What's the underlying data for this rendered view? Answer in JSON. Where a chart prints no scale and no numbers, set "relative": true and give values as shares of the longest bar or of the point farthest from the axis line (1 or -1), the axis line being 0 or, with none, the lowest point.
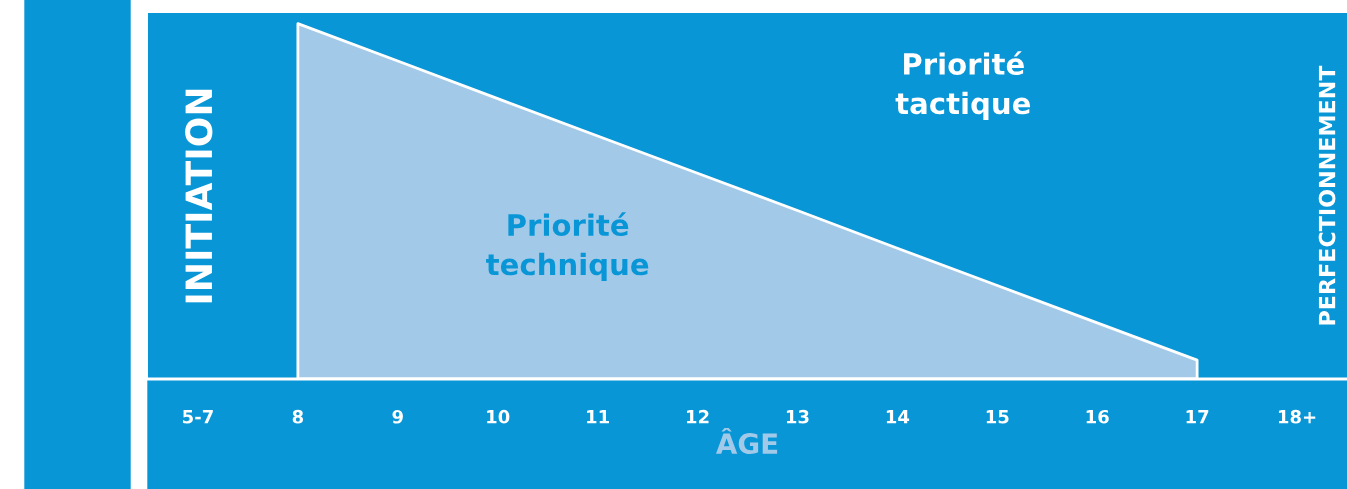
{
  "chart_data": {
    "type": "area",
    "relative": true,
    "xlabel": "ÂGE",
    "categories": [
      "5-7",
      "8",
      "9",
      "10",
      "11",
      "12",
      "13",
      "14",
      "15",
      "16",
      "17",
      "18+"
    ],
    "series": [
      {
        "color": "#a3c9e9",
        "values": [
          null,
          1,
          0.895,
          0.789,
          0.684,
          0.579,
          0.474,
          0.368,
          0.263,
          0.158,
          0.053,
          null
        ]
      }
    ],
    "annotations": [
      "INITIATION",
      "Priorité\ntechnique",
      "Priorité\ntactique",
      "PERFECTIONNEMENT"
    ],
    "grid": false,
    "legend": false
  }
}
